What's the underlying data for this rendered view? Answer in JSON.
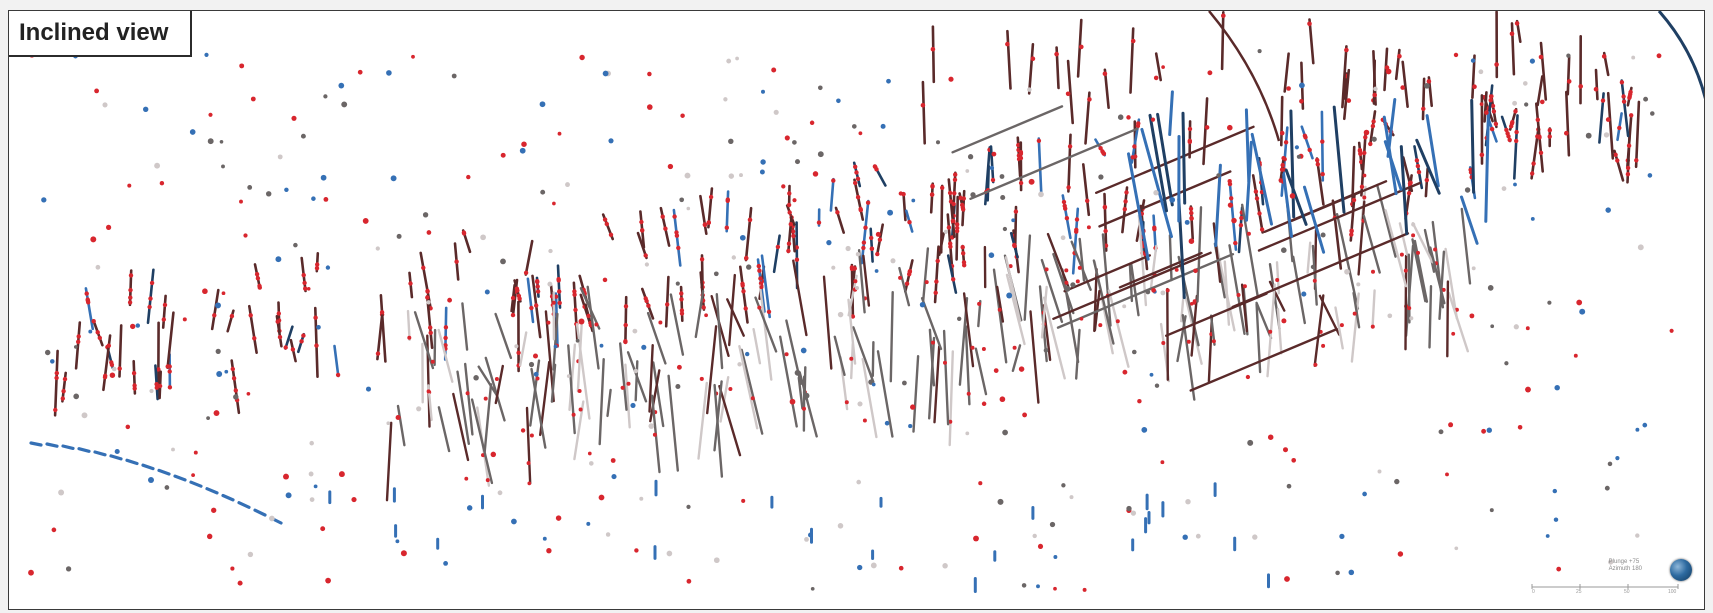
{
  "view": {
    "title": "Inclined view"
  },
  "scale": {
    "line1": "Plunge +75",
    "line2": "Azimuth 180",
    "ticks": [
      "0",
      "25",
      "50",
      "100"
    ]
  },
  "colors": {
    "background": "#ffffff",
    "dark_trace": "#5a2a2a",
    "red_marker": "#d8262e",
    "blue_trace": "#3570b5",
    "navy_trace": "#1f3f63",
    "grey_trace": "#6b6666",
    "light_trace": "#cfc8c8"
  },
  "icons": {
    "compass": "globe-icon"
  }
}
